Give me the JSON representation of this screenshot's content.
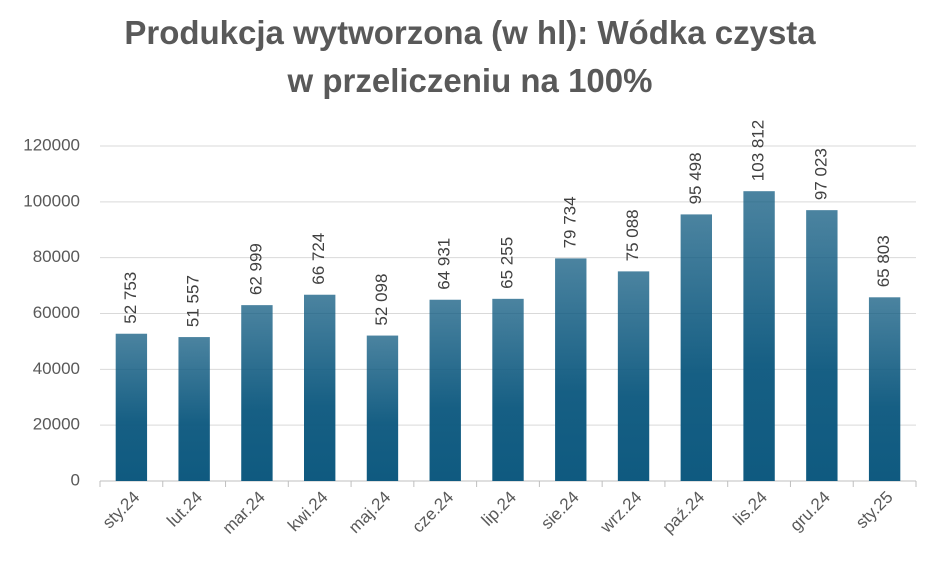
{
  "chart_data": {
    "type": "bar",
    "title": [
      "Produkcja wytworzona (w hl): Wódka czysta",
      "w przeliczeniu na 100%"
    ],
    "categories": [
      "sty.24",
      "lut.24",
      "mar.24",
      "kwi.24",
      "maj.24",
      "cze.24",
      "lip.24",
      "sie.24",
      "wrz.24",
      "paź.24",
      "lis.24",
      "gru.24",
      "sty.25"
    ],
    "values": [
      52753,
      51557,
      62999,
      66724,
      52098,
      64931,
      65255,
      79734,
      75088,
      95498,
      103812,
      97023,
      65803
    ],
    "value_labels": [
      "52 753",
      "51 557",
      "62 999",
      "66 724",
      "52 098",
      "64 931",
      "65 255",
      "79 734",
      "75 088",
      "95 498",
      "103 812",
      "97 023",
      "65 803"
    ],
    "color": "#0f5a80",
    "ylim": [
      0,
      120000
    ],
    "yticks": [
      0,
      20000,
      40000,
      60000,
      80000,
      100000,
      120000
    ],
    "grid": true
  }
}
